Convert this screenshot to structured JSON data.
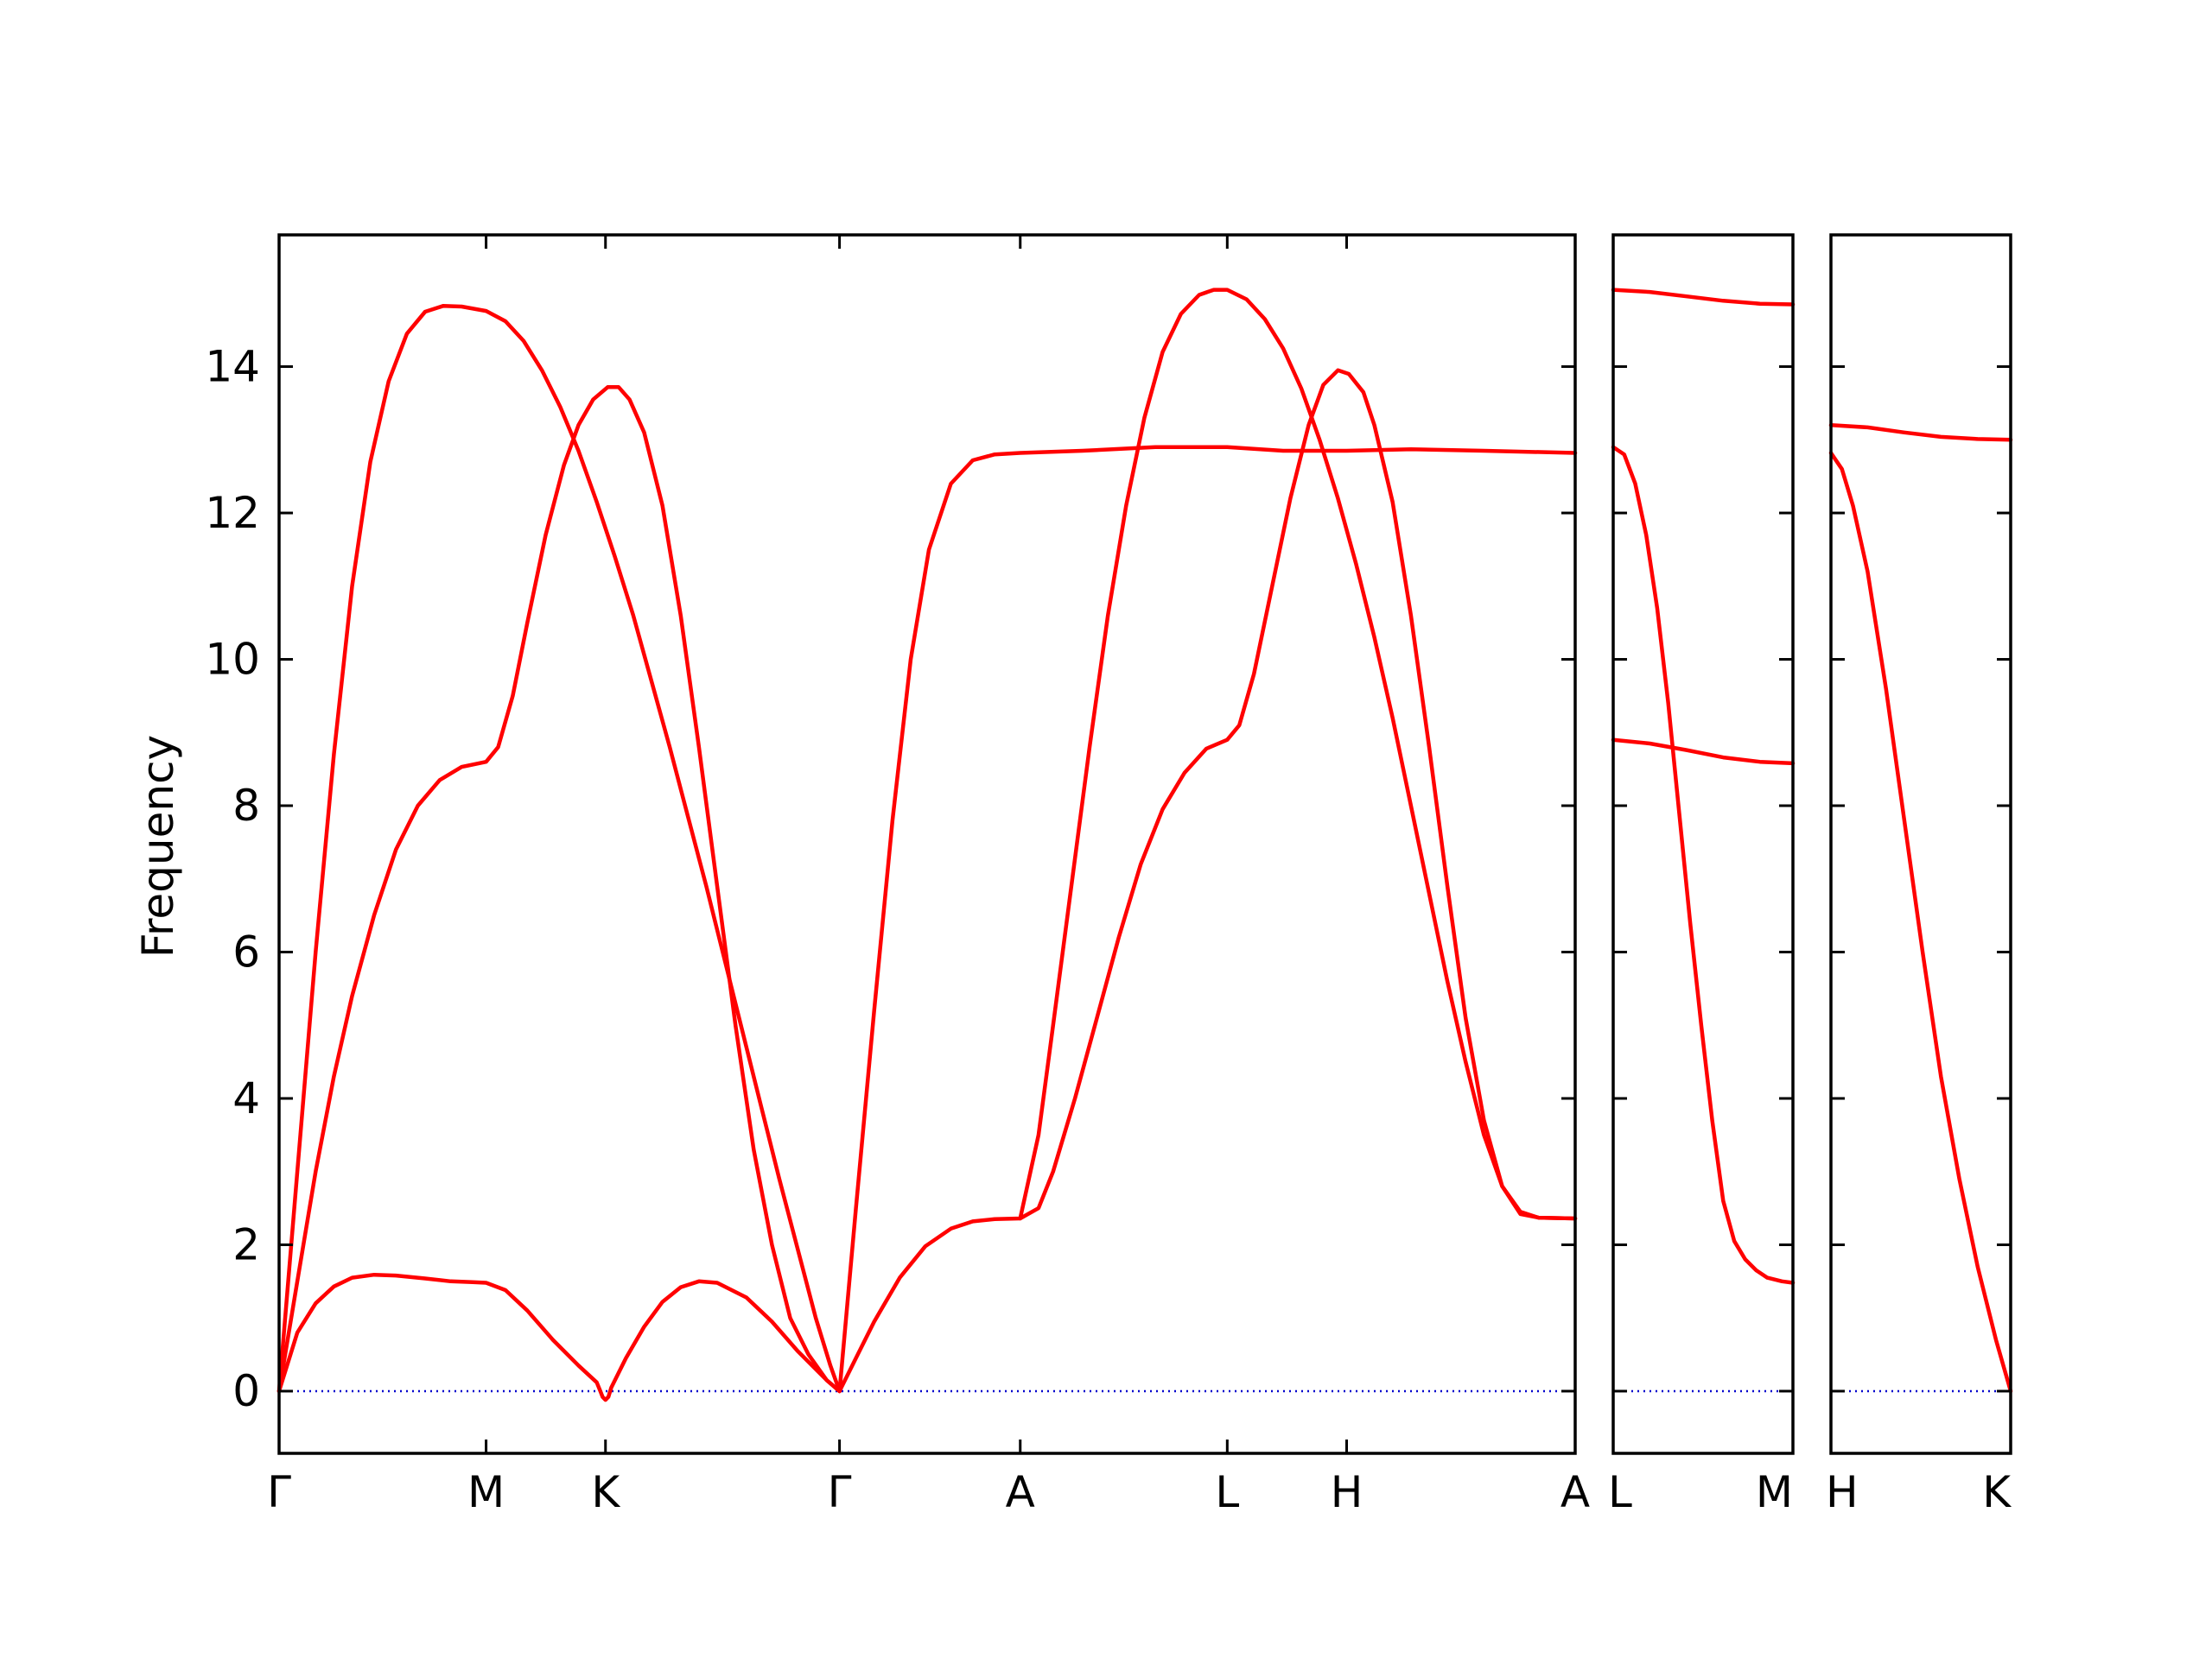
{
  "chart_data": {
    "type": "line",
    "ylabel": "Frequency",
    "ylim": [
      -0.85,
      15.8
    ],
    "yticks": [
      0,
      2,
      4,
      6,
      8,
      10,
      12,
      14
    ],
    "grid": false,
    "legend": "none",
    "colors": {
      "bands": "#ff0000",
      "zero_line": "#0000cc",
      "frame": "#000000"
    },
    "panels": [
      {
        "name": "panel-1",
        "xlim": [
          0,
          3.55
        ],
        "ticks": [
          {
            "x": 0,
            "label": "Γ"
          },
          {
            "x": 0.567,
            "label": "M"
          },
          {
            "x": 0.894,
            "label": "K"
          },
          {
            "x": 1.535,
            "label": "Γ"
          },
          {
            "x": 2.03,
            "label": "A"
          },
          {
            "x": 2.597,
            "label": "L"
          },
          {
            "x": 2.924,
            "label": "H"
          },
          {
            "x": 3.55,
            "label": "A"
          }
        ],
        "series": [
          {
            "points": [
              [
                0,
                0
              ],
              [
                0.05,
                0.8
              ],
              [
                0.1,
                1.2
              ],
              [
                0.15,
                1.43
              ],
              [
                0.2,
                1.55
              ],
              [
                0.26,
                1.59
              ],
              [
                0.32,
                1.58
              ],
              [
                0.4,
                1.54
              ],
              [
                0.47,
                1.5
              ],
              [
                0.53,
                1.49
              ],
              [
                0.567,
                1.48
              ],
              [
                0.62,
                1.38
              ],
              [
                0.68,
                1.1
              ],
              [
                0.75,
                0.7
              ],
              [
                0.82,
                0.35
              ],
              [
                0.87,
                0.12
              ],
              [
                0.88,
                0.0
              ],
              [
                0.886,
                -0.08
              ],
              [
                0.894,
                -0.12
              ],
              [
                0.902,
                -0.08
              ],
              [
                0.91,
                0.05
              ],
              [
                0.95,
                0.45
              ],
              [
                1.0,
                0.88
              ],
              [
                1.05,
                1.22
              ],
              [
                1.1,
                1.42
              ],
              [
                1.15,
                1.5
              ],
              [
                1.2,
                1.48
              ],
              [
                1.28,
                1.28
              ],
              [
                1.35,
                0.95
              ],
              [
                1.42,
                0.55
              ],
              [
                1.5,
                0.15
              ],
              [
                1.535,
                0
              ]
            ]
          },
          {
            "points": [
              [
                0,
                0
              ],
              [
                0.05,
                1.5
              ],
              [
                0.1,
                3.0
              ],
              [
                0.15,
                4.3
              ],
              [
                0.2,
                5.4
              ],
              [
                0.26,
                6.5
              ],
              [
                0.32,
                7.4
              ],
              [
                0.38,
                8.0
              ],
              [
                0.44,
                8.35
              ],
              [
                0.5,
                8.53
              ],
              [
                0.567,
                8.6
              ],
              [
                0.6,
                8.8
              ],
              [
                0.64,
                9.5
              ],
              [
                0.68,
                10.5
              ],
              [
                0.73,
                11.7
              ],
              [
                0.78,
                12.65
              ],
              [
                0.82,
                13.2
              ],
              [
                0.86,
                13.55
              ],
              [
                0.9,
                13.72
              ],
              [
                0.93,
                13.72
              ],
              [
                0.96,
                13.55
              ],
              [
                1.0,
                13.1
              ],
              [
                1.05,
                12.1
              ],
              [
                1.1,
                10.6
              ],
              [
                1.15,
                8.8
              ],
              [
                1.2,
                6.9
              ],
              [
                1.25,
                5.0
              ],
              [
                1.3,
                3.3
              ],
              [
                1.35,
                2.0
              ],
              [
                1.4,
                1.0
              ],
              [
                1.45,
                0.5
              ],
              [
                1.5,
                0.15
              ],
              [
                1.535,
                0
              ]
            ]
          },
          {
            "points": [
              [
                0,
                0
              ],
              [
                0.05,
                3.0
              ],
              [
                0.1,
                6.0
              ],
              [
                0.15,
                8.7
              ],
              [
                0.2,
                11.0
              ],
              [
                0.25,
                12.7
              ],
              [
                0.3,
                13.8
              ],
              [
                0.35,
                14.45
              ],
              [
                0.4,
                14.75
              ],
              [
                0.45,
                14.83
              ],
              [
                0.5,
                14.82
              ],
              [
                0.567,
                14.76
              ],
              [
                0.62,
                14.62
              ],
              [
                0.67,
                14.35
              ],
              [
                0.72,
                13.95
              ],
              [
                0.77,
                13.45
              ],
              [
                0.82,
                12.85
              ],
              [
                0.87,
                12.15
              ],
              [
                0.92,
                11.4
              ],
              [
                0.97,
                10.6
              ],
              [
                1.02,
                9.7
              ],
              [
                1.07,
                8.8
              ],
              [
                1.12,
                7.85
              ],
              [
                1.17,
                6.9
              ],
              [
                1.22,
                5.9
              ],
              [
                1.27,
                4.9
              ],
              [
                1.32,
                3.9
              ],
              [
                1.37,
                2.9
              ],
              [
                1.42,
                1.95
              ],
              [
                1.47,
                1.0
              ],
              [
                1.51,
                0.35
              ],
              [
                1.535,
                0
              ]
            ]
          },
          {
            "points": [
              [
                1.535,
                0
              ],
              [
                1.58,
                0.45
              ],
              [
                1.63,
                0.95
              ],
              [
                1.7,
                1.55
              ],
              [
                1.77,
                1.98
              ],
              [
                1.84,
                2.22
              ],
              [
                1.9,
                2.32
              ],
              [
                1.96,
                2.35
              ],
              [
                2.03,
                2.36
              ],
              [
                2.08,
                2.5
              ],
              [
                2.12,
                3.0
              ],
              [
                2.18,
                4.0
              ],
              [
                2.24,
                5.1
              ],
              [
                2.3,
                6.2
              ],
              [
                2.36,
                7.2
              ],
              [
                2.42,
                7.95
              ],
              [
                2.48,
                8.45
              ],
              [
                2.54,
                8.78
              ],
              [
                2.597,
                8.9
              ],
              [
                2.63,
                9.1
              ],
              [
                2.67,
                9.8
              ],
              [
                2.72,
                11.0
              ],
              [
                2.77,
                12.2
              ],
              [
                2.82,
                13.2
              ],
              [
                2.86,
                13.75
              ],
              [
                2.9,
                13.95
              ],
              [
                2.93,
                13.9
              ],
              [
                2.97,
                13.65
              ],
              [
                3.0,
                13.2
              ],
              [
                3.05,
                12.15
              ],
              [
                3.1,
                10.6
              ],
              [
                3.15,
                8.8
              ],
              [
                3.2,
                6.9
              ],
              [
                3.25,
                5.1
              ],
              [
                3.3,
                3.7
              ],
              [
                3.35,
                2.8
              ],
              [
                3.4,
                2.42
              ],
              [
                3.45,
                2.37
              ],
              [
                3.55,
                2.36
              ]
            ]
          },
          {
            "points": [
              [
                1.535,
                0
              ],
              [
                1.58,
                2.5
              ],
              [
                1.63,
                5.2
              ],
              [
                1.68,
                7.8
              ],
              [
                1.73,
                10.0
              ],
              [
                1.78,
                11.5
              ],
              [
                1.84,
                12.4
              ],
              [
                1.9,
                12.72
              ],
              [
                1.96,
                12.8
              ],
              [
                2.03,
                12.82
              ],
              [
                2.2,
                12.85
              ],
              [
                2.4,
                12.9
              ],
              [
                2.597,
                12.9
              ],
              [
                2.75,
                12.85
              ],
              [
                2.924,
                12.85
              ],
              [
                3.1,
                12.87
              ],
              [
                3.3,
                12.85
              ],
              [
                3.55,
                12.82
              ]
            ]
          },
          {
            "points": [
              [
                2.03,
                2.36
              ],
              [
                2.08,
                3.5
              ],
              [
                2.12,
                5.0
              ],
              [
                2.17,
                6.9
              ],
              [
                2.22,
                8.8
              ],
              [
                2.27,
                10.6
              ],
              [
                2.32,
                12.1
              ],
              [
                2.37,
                13.3
              ],
              [
                2.42,
                14.2
              ],
              [
                2.47,
                14.72
              ],
              [
                2.52,
                14.98
              ],
              [
                2.56,
                15.05
              ],
              [
                2.597,
                15.05
              ],
              [
                2.65,
                14.92
              ],
              [
                2.7,
                14.65
              ],
              [
                2.75,
                14.25
              ],
              [
                2.8,
                13.7
              ],
              [
                2.85,
                13.0
              ],
              [
                2.9,
                12.2
              ],
              [
                2.95,
                11.3
              ],
              [
                3.0,
                10.3
              ],
              [
                3.05,
                9.2
              ],
              [
                3.1,
                8.0
              ],
              [
                3.15,
                6.8
              ],
              [
                3.2,
                5.6
              ],
              [
                3.25,
                4.5
              ],
              [
                3.3,
                3.5
              ],
              [
                3.35,
                2.8
              ],
              [
                3.4,
                2.45
              ],
              [
                3.45,
                2.37
              ],
              [
                3.55,
                2.36
              ]
            ]
          }
        ]
      },
      {
        "name": "panel-2",
        "xlim": [
          0,
          0.49
        ],
        "ticks": [
          {
            "x": 0,
            "label": "L"
          },
          {
            "x": 0.49,
            "label": "M"
          }
        ],
        "series": [
          {
            "points": [
              [
                0,
                15.05
              ],
              [
                0.1,
                15.02
              ],
              [
                0.2,
                14.96
              ],
              [
                0.3,
                14.9
              ],
              [
                0.4,
                14.86
              ],
              [
                0.49,
                14.85
              ]
            ]
          },
          {
            "points": [
              [
                0,
                8.9
              ],
              [
                0.1,
                8.85
              ],
              [
                0.2,
                8.76
              ],
              [
                0.3,
                8.66
              ],
              [
                0.4,
                8.6
              ],
              [
                0.49,
                8.58
              ]
            ]
          },
          {
            "points": [
              [
                0,
                12.9
              ],
              [
                0.03,
                12.8
              ],
              [
                0.06,
                12.4
              ],
              [
                0.09,
                11.7
              ],
              [
                0.12,
                10.7
              ],
              [
                0.15,
                9.4
              ],
              [
                0.18,
                7.9
              ],
              [
                0.21,
                6.4
              ],
              [
                0.24,
                5.0
              ],
              [
                0.27,
                3.7
              ],
              [
                0.3,
                2.6
              ],
              [
                0.33,
                2.05
              ],
              [
                0.36,
                1.8
              ],
              [
                0.39,
                1.65
              ],
              [
                0.42,
                1.55
              ],
              [
                0.46,
                1.5
              ],
              [
                0.49,
                1.48
              ]
            ]
          }
        ]
      },
      {
        "name": "panel-3",
        "xlim": [
          0,
          0.49
        ],
        "ticks": [
          {
            "x": 0,
            "label": "H"
          },
          {
            "x": 0.49,
            "label": "K"
          }
        ],
        "series": [
          {
            "points": [
              [
                0,
                13.2
              ],
              [
                0.1,
                13.17
              ],
              [
                0.2,
                13.1
              ],
              [
                0.3,
                13.04
              ],
              [
                0.4,
                13.01
              ],
              [
                0.49,
                13.0
              ]
            ]
          },
          {
            "points": [
              [
                0,
                12.82
              ],
              [
                0.03,
                12.6
              ],
              [
                0.06,
                12.1
              ],
              [
                0.1,
                11.2
              ],
              [
                0.15,
                9.6
              ],
              [
                0.2,
                7.8
              ],
              [
                0.25,
                6.0
              ],
              [
                0.3,
                4.3
              ],
              [
                0.35,
                2.9
              ],
              [
                0.4,
                1.7
              ],
              [
                0.45,
                0.7
              ],
              [
                0.49,
                0
              ]
            ]
          }
        ]
      }
    ]
  }
}
